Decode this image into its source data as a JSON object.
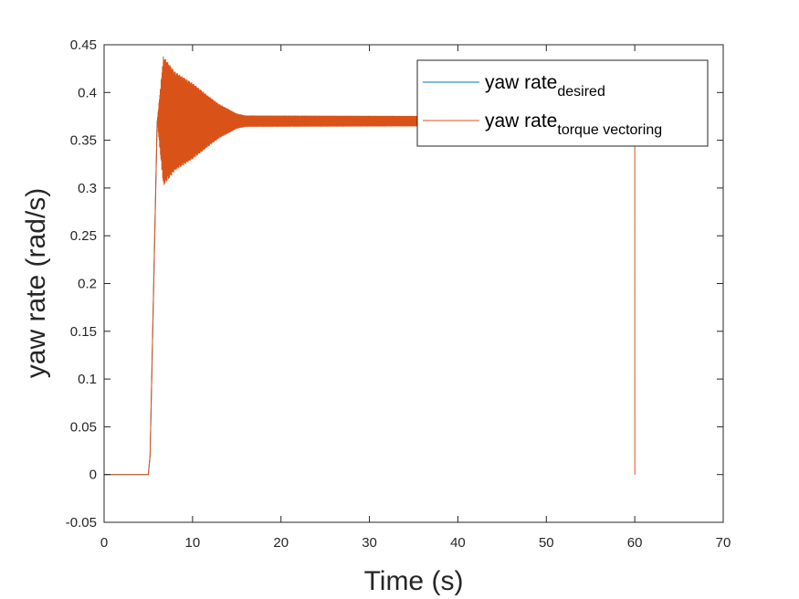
{
  "chart_data": {
    "type": "line",
    "xlabel": "Time (s)",
    "ylabel": "yaw rate (rad/s)",
    "xlim": [
      0,
      70
    ],
    "ylim": [
      -0.05,
      0.45
    ],
    "xticks": [
      "0",
      "10",
      "20",
      "30",
      "40",
      "50",
      "60",
      "70"
    ],
    "yticks": [
      "-0.05",
      "0",
      "0.05",
      "0.1",
      "0.15",
      "0.2",
      "0.25",
      "0.3",
      "0.35",
      "0.4",
      "0.45"
    ],
    "grid": false,
    "legend_position": "top-right",
    "series": [
      {
        "name": "yaw rate",
        "subscript": "desired",
        "color": "#0072BD",
        "x": [
          0,
          5,
          5.2,
          6,
          6.3,
          60,
          60.01,
          60.02
        ],
        "y": [
          0,
          0,
          0.02,
          0.37,
          0.37,
          0.37,
          0.37,
          0.37
        ]
      },
      {
        "name": "yaw rate",
        "subscript": "torque vectoring",
        "color": "#D95319",
        "x": [
          0,
          5,
          5.2,
          6.0,
          6.5,
          15,
          60,
          60.01,
          60.02
        ],
        "y": [
          0,
          0,
          0.02,
          0.37,
          0.37,
          0.37,
          0.37,
          0.35,
          0
        ],
        "oscillation": {
          "center": 0.37,
          "envelope": [
            [
              6.0,
              0.0
            ],
            [
              6.7,
              0.068
            ],
            [
              8,
              0.052
            ],
            [
              10,
              0.04
            ],
            [
              12,
              0.025
            ],
            [
              13,
              0.018
            ],
            [
              15,
              0.008
            ],
            [
              16,
              0.006
            ],
            [
              60,
              0.005
            ]
          ]
        }
      }
    ]
  }
}
